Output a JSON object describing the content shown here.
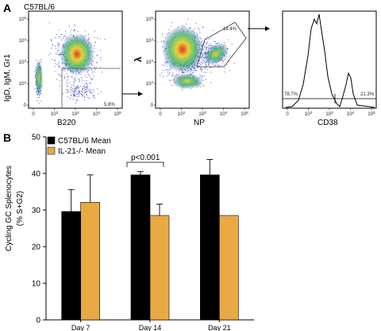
{
  "panel_a": {
    "letter": "A",
    "strain": "C57BL/6",
    "plot1": {
      "ylabel": "IgD, IgM, Gr1",
      "xlabel": "B220",
      "gate_pct": "5.8%",
      "yticks": [
        "10^5",
        "10^4",
        "10^3",
        "10^2",
        "0"
      ],
      "xticks": [
        "0",
        "10^2",
        "10^3",
        "10^4",
        "10^5"
      ]
    },
    "plot2": {
      "ylabel": "λ",
      "xlabel": "NP",
      "gate_pct": "18.4%",
      "yticks": [
        "10^5",
        "10^4",
        "10^3",
        "10^2",
        "0"
      ],
      "xticks": [
        "0",
        "10^2",
        "10^3",
        "10^4",
        "10^5"
      ]
    },
    "plot3": {
      "xlabel": "CD38",
      "left_pct": "78.7%",
      "right_pct": "21.3%",
      "xticks": [
        "0",
        "10^2",
        "10^3",
        "10^4",
        "10^5"
      ]
    }
  },
  "colors": {
    "black_bar": "#000000",
    "orange_bar": "#e9a944",
    "dot_blue": "#2a3db5",
    "dot_green": "#3fb56a",
    "dot_yellow": "#e8d33a",
    "dot_red": "#e0392b"
  },
  "chart_data": {
    "type": "bar",
    "panel_letter": "B",
    "categories": [
      "Day 7",
      "Day 14",
      "Day 21"
    ],
    "series": [
      {
        "name": "C57BL/6 Mean",
        "color": "#000000",
        "values": [
          29.6,
          39.6,
          39.6
        ],
        "errors": [
          6.0,
          0.9,
          4.2
        ]
      },
      {
        "name": "IL-21-/- Mean",
        "color": "#e9a944",
        "values": [
          32.1,
          28.5,
          28.5
        ],
        "errors": [
          7.5,
          3.1,
          0
        ]
      }
    ],
    "ylabel_lines": [
      "Cycling GC Splenocytes",
      "(% S+G2)"
    ],
    "ylim": [
      0,
      50
    ],
    "yticks": [
      0,
      10,
      20,
      30,
      40,
      50
    ],
    "annotation": "p<0.001",
    "legend_position": "top-left",
    "grid": false
  }
}
